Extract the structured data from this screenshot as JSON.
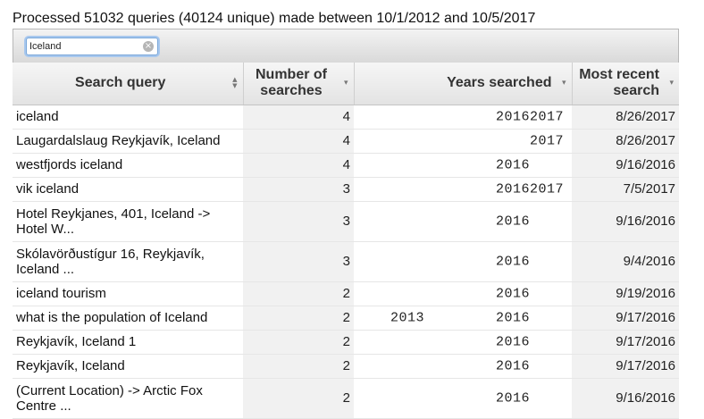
{
  "summary": "Processed 51032 queries (40124 unique) made between 10/1/2012 and 10/5/2017",
  "search": {
    "value": "Iceland",
    "clear_icon": "clear-circle-icon"
  },
  "columns": [
    {
      "label": "Search query",
      "sort": "both"
    },
    {
      "label": "Number of searches",
      "sort": "desc"
    },
    {
      "label": "Years searched",
      "sort": "desc"
    },
    {
      "label": "Most recent search",
      "sort": "desc"
    }
  ],
  "rows": [
    {
      "query": "iceland",
      "count": "4",
      "y2013": "",
      "y2016": "2016",
      "y2017": "2017",
      "recent": "8/26/2017"
    },
    {
      "query": "Laugardalslaug Reykjavík, Iceland",
      "count": "4",
      "y2013": "",
      "y2016": "",
      "y2017": "2017",
      "recent": "8/26/2017"
    },
    {
      "query": "westfjords iceland",
      "count": "4",
      "y2013": "",
      "y2016": "2016",
      "y2017": "",
      "recent": "9/16/2016"
    },
    {
      "query": "vik iceland",
      "count": "3",
      "y2013": "",
      "y2016": "2016",
      "y2017": "2017",
      "recent": "7/5/2017"
    },
    {
      "query": "Hotel Reykjanes, 401, Iceland -> Hotel W...",
      "count": "3",
      "y2013": "",
      "y2016": "2016",
      "y2017": "",
      "recent": "9/16/2016"
    },
    {
      "query": "Skólavörðustígur 16, Reykjavík, Iceland ...",
      "count": "3",
      "y2013": "",
      "y2016": "2016",
      "y2017": "",
      "recent": "9/4/2016"
    },
    {
      "query": "iceland tourism",
      "count": "2",
      "y2013": "",
      "y2016": "2016",
      "y2017": "",
      "recent": "9/19/2016"
    },
    {
      "query": "what is the population of Iceland",
      "count": "2",
      "y2013": "2013",
      "y2016": "2016",
      "y2017": "",
      "recent": "9/17/2016"
    },
    {
      "query": "Reykjavík, Iceland 1",
      "count": "2",
      "y2013": "",
      "y2016": "2016",
      "y2017": "",
      "recent": "9/17/2016"
    },
    {
      "query": "Reykjavík, Iceland",
      "count": "2",
      "y2013": "",
      "y2016": "2016",
      "y2017": "",
      "recent": "9/17/2016"
    },
    {
      "query": "(Current Location) -> Arctic Fox Centre ...",
      "count": "2",
      "y2013": "",
      "y2016": "2016",
      "y2017": "",
      "recent": "9/16/2016"
    }
  ]
}
